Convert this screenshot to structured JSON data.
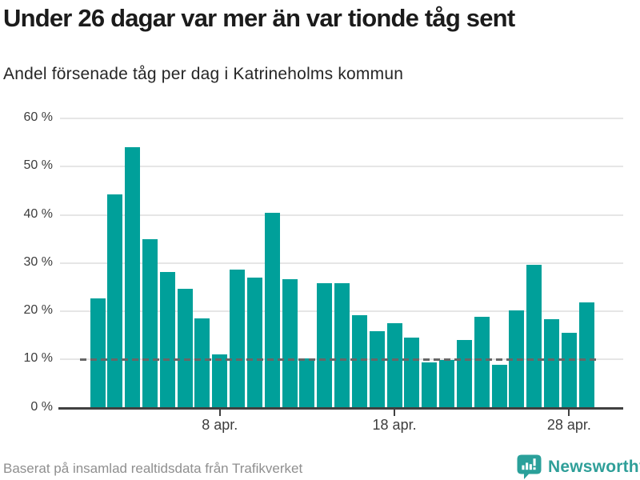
{
  "title": "Under 26 dagar var mer än var tionde tåg sent",
  "subtitle": "Andel försenade tåg per dag i Katrineholms kommun",
  "footer": {
    "source": "Baserat på insamlad realtidsdata från Trafikverket",
    "brand": "Newsworthy"
  },
  "colors": {
    "bar": "#00a09a",
    "grid": "#e6e6e6",
    "axis": "#404040",
    "reference_line": "#676767",
    "tick_text": "#3d3d3d",
    "title_text": "#1b1b1b",
    "muted_text": "#8f8f8f",
    "brand_teal": "#2f9f99"
  },
  "chart_data": {
    "type": "bar",
    "title": "Under 26 dagar var mer än var tionde tåg sent",
    "subtitle": "Andel försenade tåg per dag i Katrineholms kommun",
    "xlabel": "",
    "ylabel": "",
    "unit": "%",
    "ylim": [
      0,
      60
    ],
    "grid": true,
    "legend": false,
    "categories": [
      "1 apr.",
      "2 apr.",
      "3 apr.",
      "4 apr.",
      "5 apr.",
      "6 apr.",
      "7 apr.",
      "8 apr.",
      "9 apr.",
      "10 apr.",
      "11 apr.",
      "12 apr.",
      "13 apr.",
      "14 apr.",
      "15 apr.",
      "16 apr.",
      "17 apr.",
      "18 apr.",
      "19 apr.",
      "20 apr.",
      "21 apr.",
      "22 apr.",
      "23 apr.",
      "24 apr.",
      "25 apr.",
      "26 apr.",
      "27 apr.",
      "28 apr.",
      "29 apr."
    ],
    "values": [
      22.6,
      44.3,
      54.1,
      34.9,
      28.1,
      24.6,
      18.5,
      11.0,
      28.6,
      27.0,
      40.5,
      26.6,
      10.2,
      25.8,
      25.9,
      19.2,
      15.8,
      17.6,
      14.6,
      9.3,
      9.9,
      14.1,
      18.9,
      8.9,
      20.2,
      29.6,
      18.4,
      15.6,
      21.8
    ],
    "yticks": [
      0,
      10,
      20,
      30,
      40,
      50,
      60
    ],
    "ytick_labels": [
      "0 %",
      "10 %",
      "20 %",
      "30 %",
      "40 %",
      "50 %",
      "60 %"
    ],
    "xticks": [
      {
        "index": 7,
        "label": "8 apr."
      },
      {
        "index": 17,
        "label": "18 apr."
      },
      {
        "index": 27,
        "label": "28 apr."
      }
    ],
    "reference_line": {
      "value": 10,
      "style": "dashed"
    }
  }
}
